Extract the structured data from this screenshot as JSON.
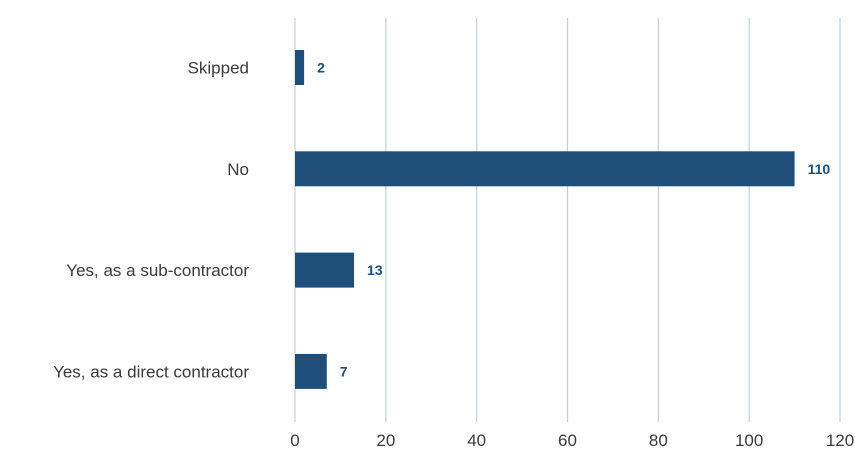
{
  "chart_data": {
    "type": "bar",
    "orientation": "horizontal",
    "categories": [
      "Skipped",
      "No",
      "Yes, as a sub-contractor",
      "Yes, as a direct contractor"
    ],
    "values": [
      2,
      110,
      13,
      7
    ],
    "xlim": [
      0,
      120
    ],
    "xticks": [
      0,
      20,
      40,
      60,
      80,
      100,
      120
    ],
    "grid": true,
    "legend": "none",
    "title": "",
    "xlabel": "",
    "ylabel": "",
    "colors": {
      "bar": "#1f4e7a",
      "label": "#1f4e7a",
      "grid": "#c3d0dc",
      "text": "#3b3b3b"
    }
  }
}
